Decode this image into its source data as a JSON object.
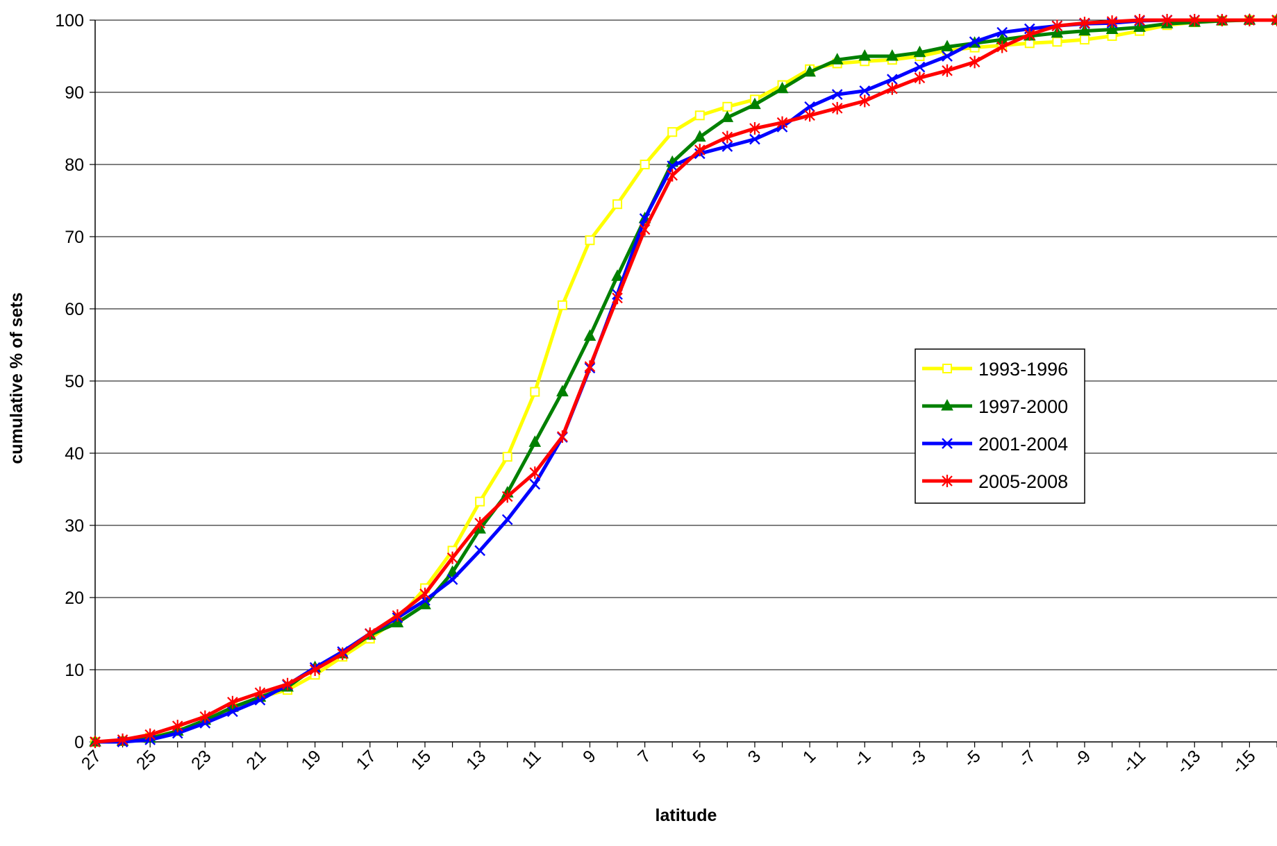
{
  "chart_data": {
    "type": "line",
    "title": "",
    "xlabel": "latitude",
    "ylabel": "cumulative % of sets",
    "ylim": [
      0,
      100
    ],
    "y_ticks": [
      "0",
      "10",
      "20",
      "30",
      "40",
      "50",
      "60",
      "70",
      "80",
      "90",
      "100"
    ],
    "x_range": [
      27,
      -16
    ],
    "x_tick_labels": [
      "27",
      "25",
      "23",
      "21",
      "19",
      "17",
      "15",
      "13",
      "11",
      "9",
      "7",
      "5",
      "3",
      "1",
      "-1",
      "-3",
      "-5",
      "-7",
      "-9",
      "-11",
      "-13",
      "-15"
    ],
    "grid": "horizontal",
    "legend_position": "center-right",
    "x": [
      27,
      26,
      25,
      24,
      23,
      22,
      21,
      20,
      19,
      18,
      17,
      16,
      15,
      14,
      13,
      12,
      11,
      10,
      9,
      8,
      7,
      6,
      5,
      4,
      3,
      2,
      1,
      0,
      -1,
      -2,
      -3,
      -4,
      -5,
      -6,
      -7,
      -8,
      -9,
      -10,
      -11,
      -12,
      -13,
      -14,
      -15,
      -16
    ],
    "series": [
      {
        "name": "1993-1996",
        "color": "#ffff00",
        "marker": "square",
        "values": [
          0,
          0.1,
          0.6,
          1.5,
          3.0,
          4.8,
          6.2,
          7.2,
          9.3,
          11.8,
          14.3,
          17.0,
          21.3,
          26.5,
          33.3,
          39.5,
          48.5,
          60.5,
          69.5,
          74.5,
          80.0,
          84.5,
          86.8,
          88.0,
          89.0,
          91.0,
          93.2,
          94.0,
          94.3,
          94.5,
          95.0,
          95.8,
          96.2,
          96.5,
          96.8,
          97.0,
          97.3,
          97.8,
          98.5,
          99.3,
          99.7,
          99.9,
          100,
          100
        ]
      },
      {
        "name": "1997-2000",
        "color": "#008000",
        "marker": "triangle",
        "values": [
          0,
          0.1,
          0.5,
          1.5,
          3.0,
          4.8,
          6.2,
          7.6,
          10.3,
          12.2,
          14.8,
          16.5,
          19.0,
          23.5,
          29.5,
          34.5,
          41.5,
          48.5,
          56.2,
          64.5,
          72.5,
          80.3,
          83.8,
          86.5,
          88.3,
          90.5,
          92.8,
          94.5,
          95.0,
          95.0,
          95.5,
          96.3,
          96.8,
          97.3,
          97.8,
          98.2,
          98.5,
          98.7,
          99.0,
          99.5,
          99.7,
          99.9,
          100,
          100
        ]
      },
      {
        "name": "2001-2004",
        "color": "#0000ff",
        "marker": "x",
        "values": [
          0,
          0,
          0.3,
          1.2,
          2.6,
          4.2,
          5.8,
          7.9,
          10.3,
          12.5,
          15.0,
          17.2,
          19.6,
          22.5,
          26.5,
          30.8,
          35.7,
          42.2,
          51.8,
          62.0,
          72.5,
          79.8,
          81.5,
          82.5,
          83.5,
          85.2,
          88.0,
          89.7,
          90.2,
          91.8,
          93.5,
          95.0,
          97.0,
          98.3,
          98.8,
          99.2,
          99.5,
          99.6,
          99.9,
          100,
          100,
          100,
          100,
          100
        ]
      },
      {
        "name": "2005-2008",
        "color": "#ff0000",
        "marker": "star",
        "values": [
          0,
          0.3,
          1.0,
          2.2,
          3.5,
          5.5,
          6.8,
          8.0,
          10.0,
          12.2,
          15.0,
          17.5,
          20.5,
          25.5,
          30.3,
          34.0,
          37.3,
          42.3,
          52.0,
          61.5,
          71.0,
          78.5,
          82.0,
          83.8,
          85.0,
          85.8,
          86.8,
          87.8,
          88.8,
          90.5,
          92.0,
          93.0,
          94.2,
          96.3,
          98.0,
          99.2,
          99.6,
          99.8,
          100,
          100,
          100,
          100,
          100,
          100
        ]
      }
    ]
  }
}
